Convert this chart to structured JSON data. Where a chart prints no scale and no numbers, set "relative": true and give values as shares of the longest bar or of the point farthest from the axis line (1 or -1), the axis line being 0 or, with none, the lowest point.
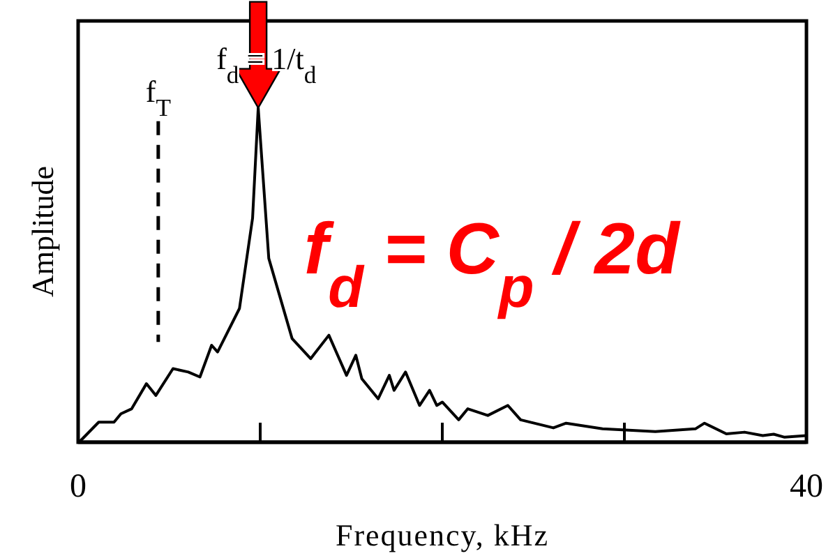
{
  "chart_data": {
    "type": "line",
    "relative": true,
    "xlabel": "Frequency, kHz",
    "ylabel": "Amplitude",
    "xlim": [
      0,
      40
    ],
    "xticks": [
      0,
      {
        "value": 10,
        "label": null
      },
      {
        "value": 20,
        "label": null
      },
      {
        "value": 30,
        "label": null
      },
      40
    ],
    "x": [
      0.05,
      1.13,
      1.97,
      2.35,
      2.94,
      3.75,
      4.27,
      5.21,
      6.05,
      6.69,
      7.33,
      7.66,
      8.86,
      9.58,
      9.89,
      10.47,
      11.75,
      12.77,
      13.77,
      14.74,
      15.25,
      15.58,
      16.48,
      17.09,
      17.35,
      17.98,
      18.75,
      19.3,
      19.7,
      20.0,
      20.9,
      21.4,
      22.5,
      23.6,
      24.3,
      26.1,
      26.8,
      28.8,
      31.7,
      33.9,
      34.4,
      35.6,
      36.6,
      37.6,
      38.2,
      38.8,
      40.0
    ],
    "series": [
      {
        "color": "#000000",
        "values": [
          0,
          0.06,
          0.06,
          0.085,
          0.1,
          0.175,
          0.14,
          0.22,
          0.21,
          0.195,
          0.29,
          0.27,
          0.4,
          0.67,
          1,
          0.55,
          0.31,
          0.25,
          0.32,
          0.2,
          0.26,
          0.19,
          0.13,
          0.2,
          0.155,
          0.21,
          0.11,
          0.155,
          0.11,
          0.12,
          0.067,
          0.1,
          0.08,
          0.11,
          0.067,
          0.043,
          0.057,
          0.04,
          0.032,
          0.04,
          0.057,
          0.025,
          0.03,
          0.02,
          0.024,
          0.015,
          0.02
        ]
      }
    ],
    "ref_lines": [
      {
        "axis": "x",
        "value": 4.4,
        "label": "f$_{T}$",
        "color": "#000000",
        "line_style": "dashed"
      }
    ],
    "annotations": [
      {
        "text": "f$_{d}$ = 1/t$_{d}$",
        "x": 9.89,
        "y": 1
      },
      "f$_{d}$ = C$_{p}$ / 2d"
    ],
    "grid": false,
    "marker": "none",
    "line_style": "solid"
  }
}
